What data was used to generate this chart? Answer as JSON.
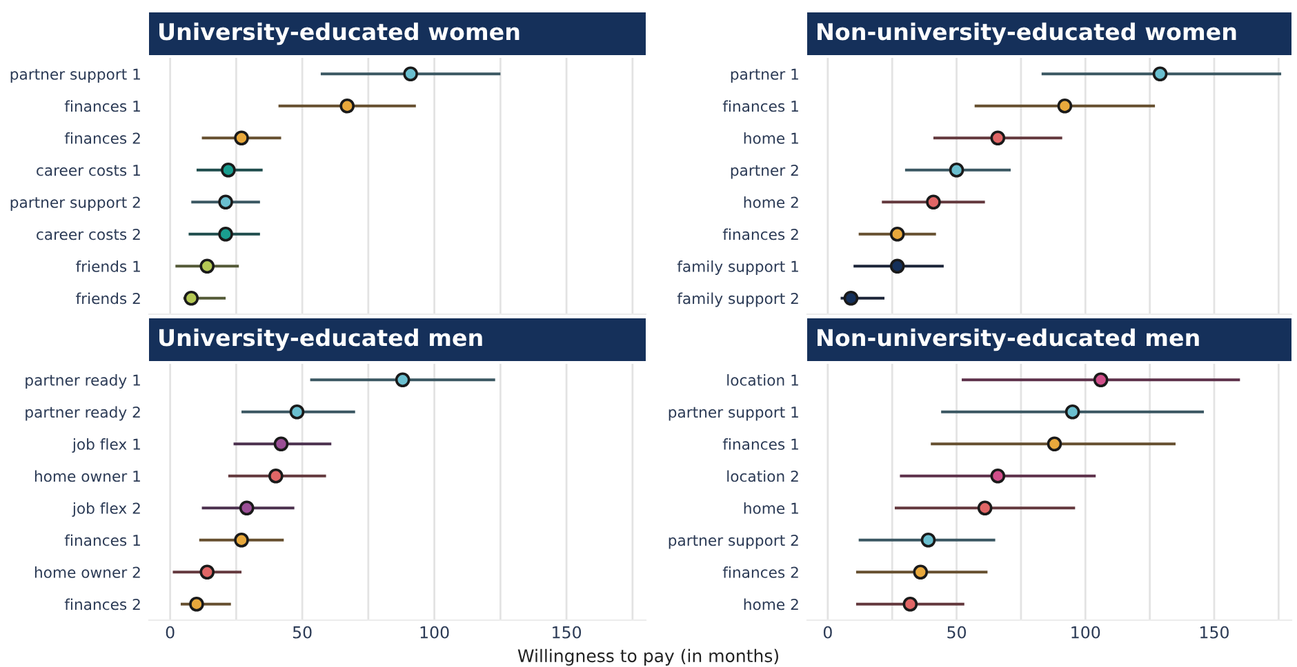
{
  "chart_data": [
    {
      "type": "scatter",
      "orientation": "horizontal",
      "title": "University-educated women",
      "categories": [
        "partner support 1",
        "finances 1",
        "finances 2",
        "career costs 1",
        "partner support 2",
        "career costs 2",
        "friends 1",
        "friends 2"
      ],
      "values": [
        91,
        67,
        27,
        22,
        21,
        21,
        14,
        8
      ],
      "errors": [
        [
          57,
          125
        ],
        [
          41,
          93
        ],
        [
          12,
          42
        ],
        [
          10,
          35
        ],
        [
          8,
          34
        ],
        [
          7,
          34
        ],
        [
          2,
          26
        ],
        [
          5,
          21
        ]
      ],
      "colors": [
        "#6bbfcf",
        "#e8a83c",
        "#e8a83c",
        "#1a9e8f",
        "#6bbfcf",
        "#1a9e8f",
        "#b5c855",
        "#b5c855"
      ],
      "xlim": [
        -8,
        180
      ],
      "xticks": [
        0,
        {
          "value": 25,
          "label": null
        },
        50,
        {
          "value": 75,
          "label": null
        },
        100,
        {
          "value": 125,
          "label": null
        },
        150,
        {
          "value": 175,
          "label": null
        }
      ],
      "grid": "x",
      "marker": "circle",
      "tick_labels": "y"
    },
    {
      "type": "scatter",
      "orientation": "horizontal",
      "title": "Non-university-educated women",
      "categories": [
        "partner 1",
        "finances 1",
        "home 1",
        "partner 2",
        "home 2",
        "finances 2",
        "family support 1",
        "family support 2"
      ],
      "values": [
        129,
        92,
        66,
        50,
        41,
        27,
        27,
        9
      ],
      "errors": [
        [
          83,
          176
        ],
        [
          57,
          127
        ],
        [
          41,
          91
        ],
        [
          30,
          71
        ],
        [
          21,
          61
        ],
        [
          12,
          42
        ],
        [
          10,
          45
        ],
        [
          5,
          22
        ]
      ],
      "colors": [
        "#6bbfcf",
        "#e8a83c",
        "#e06666",
        "#6bbfcf",
        "#e06666",
        "#e8a83c",
        "#15305a",
        "#15305a"
      ],
      "xlim": [
        -8,
        180
      ],
      "xticks": [
        0,
        {
          "value": 25,
          "label": null
        },
        50,
        {
          "value": 75,
          "label": null
        },
        100,
        {
          "value": 125,
          "label": null
        },
        150,
        {
          "value": 175,
          "label": null
        }
      ],
      "grid": "x",
      "marker": "circle",
      "tick_labels": "y"
    },
    {
      "type": "scatter",
      "orientation": "horizontal",
      "title": "University-educated men",
      "xlabel": "Willingness to pay (in months)",
      "categories": [
        "partner ready 1",
        "partner ready 2",
        "job flex 1",
        "home owner 1",
        "job flex 2",
        "finances 1",
        "home owner 2",
        "finances 2"
      ],
      "values": [
        88,
        48,
        42,
        40,
        29,
        27,
        14,
        10
      ],
      "errors": [
        [
          53,
          123
        ],
        [
          27,
          70
        ],
        [
          24,
          61
        ],
        [
          22,
          59
        ],
        [
          12,
          47
        ],
        [
          11,
          43
        ],
        [
          1,
          27
        ],
        [
          4,
          23
        ]
      ],
      "colors": [
        "#6bbfcf",
        "#6bbfcf",
        "#9b4f96",
        "#e06666",
        "#9b4f96",
        "#e8a83c",
        "#e06666",
        "#e8a83c"
      ],
      "xlim": [
        -8,
        180
      ],
      "xticks": [
        0,
        {
          "value": 25,
          "label": null
        },
        50,
        {
          "value": 75,
          "label": null
        },
        100,
        {
          "value": 125,
          "label": null
        },
        150,
        {
          "value": 175,
          "label": null
        }
      ],
      "grid": "x",
      "marker": "circle"
    },
    {
      "type": "scatter",
      "orientation": "horizontal",
      "title": "Non-university-educated men",
      "categories": [
        "location 1",
        "partner support 1",
        "finances 1",
        "location 2",
        "home 1",
        "partner support 2",
        "finances 2",
        "home 2"
      ],
      "values": [
        106,
        95,
        88,
        66,
        61,
        39,
        36,
        32
      ],
      "errors": [
        [
          52,
          160
        ],
        [
          44,
          146
        ],
        [
          40,
          135
        ],
        [
          28,
          104
        ],
        [
          26,
          96
        ],
        [
          12,
          65
        ],
        [
          11,
          62
        ],
        [
          11,
          53
        ]
      ],
      "colors": [
        "#d04f8a",
        "#6bbfcf",
        "#e8a83c",
        "#d04f8a",
        "#e06666",
        "#6bbfcf",
        "#e8a83c",
        "#e06666"
      ],
      "xlim": [
        -8,
        180
      ],
      "xticks": [
        0,
        {
          "value": 25,
          "label": null
        },
        50,
        {
          "value": 75,
          "label": null
        },
        100,
        {
          "value": 125,
          "label": null
        },
        150,
        {
          "value": 175,
          "label": null
        }
      ],
      "grid": "x",
      "marker": "circle"
    }
  ]
}
